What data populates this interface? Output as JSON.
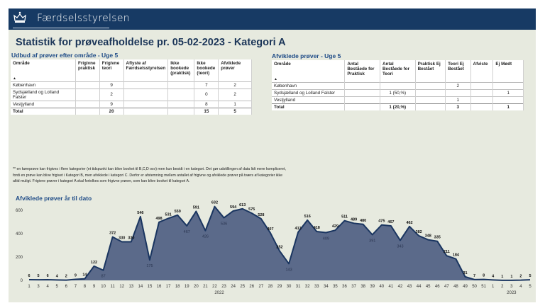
{
  "header": {
    "brand": "Færdselsstyrelsen",
    "logo_icon": "crown-icon",
    "bg_color": "#173a64"
  },
  "title": "Statistik for prøveafholdelse pr. 05-02-2023 - Kategori A",
  "offer_table": {
    "title": "Udbud af prøver efter område - Uge 5",
    "columns": [
      "Område",
      "Frigivne praktisk",
      "Frigivne teori",
      "Aflyste af Færdselsstyrelsen",
      "Ikke bookede (praktisk)",
      "Ikke bookede (teori)",
      "Afviklede prøver"
    ],
    "rows": [
      [
        "København",
        "",
        "9",
        "",
        "",
        "7",
        "2"
      ],
      [
        "Sydsjælland og Lolland Falster",
        "",
        "2",
        "",
        "",
        "0",
        "2"
      ],
      [
        "Vestjylland",
        "",
        "9",
        "",
        "",
        "8",
        "1"
      ]
    ],
    "total": [
      "Total",
      "",
      "20",
      "",
      "",
      "15",
      "5"
    ]
  },
  "completed_table": {
    "title": "Afviklede prøver - Uge 5",
    "columns": [
      "Område",
      "Antal Beståede for Praktisk",
      "Antal Beståede for Teori",
      "Praktisk Ej Bestået",
      "Teori Ej Bestået",
      "Afviste",
      "Ej Mødt"
    ],
    "rows": [
      [
        "København",
        "",
        "",
        "",
        "2",
        "",
        ""
      ],
      [
        "Sydsjælland og Lolland Falster",
        "",
        "1 (50,%)",
        "",
        "",
        "",
        "1"
      ],
      [
        "Vestjylland",
        "",
        "",
        "",
        "1",
        "",
        ""
      ]
    ],
    "total": [
      "Total",
      "",
      "1 (20,%)",
      "",
      "3",
      "",
      "1"
    ]
  },
  "footnote": "** en køreprøve kan frigives i flere kategorier (et tidspunkt kan blive booket til B,C,D osv) men kun besidt i en kategori. Det gør udstillingen af data lidt mere kompliceret, fordi en prøve kan blive frigivet i Kategori B, men afviklede i kategori C. Derfor er afstemning mellem antallet af frigivne og afviklede prøver på tværs af kategorier ikke altid muligt. Frigivne prøver i kategori A skal fortolkes som frigivne prøver, som kan blive booket til kategori A.",
  "chart_data": {
    "type": "area",
    "title": "Afviklede prøver år til dato",
    "x": [
      "1",
      "3",
      "4",
      "5",
      "6",
      "7",
      "8",
      "9",
      "10",
      "11",
      "12",
      "13",
      "14",
      "15",
      "16",
      "17",
      "18",
      "19",
      "20",
      "21",
      "22",
      "23",
      "24",
      "25",
      "26",
      "27",
      "28",
      "29",
      "30",
      "31",
      "32",
      "33",
      "34",
      "35",
      "36",
      "37",
      "38",
      "39",
      "40",
      "41",
      "42",
      "43",
      "44",
      "45",
      "46",
      "47",
      "48",
      "49",
      "50",
      "51",
      "1",
      "2",
      "3",
      "4",
      "5"
    ],
    "values": [
      6,
      5,
      6,
      4,
      2,
      9,
      14,
      122,
      87,
      372,
      330,
      330,
      546,
      175,
      498,
      531,
      559,
      467,
      591,
      426,
      632,
      536,
      594,
      613,
      575,
      528,
      407,
      252,
      143,
      413,
      516,
      418,
      409,
      429,
      511,
      489,
      480,
      391,
      475,
      467,
      343,
      462,
      382,
      348,
      335,
      211,
      184,
      31,
      7,
      8,
      4,
      1,
      1,
      2,
      5
    ],
    "year_labels": [
      {
        "label": "2022",
        "at": "26"
      },
      {
        "label": "2023",
        "at": "3"
      }
    ],
    "yticks": [
      0,
      200,
      400,
      600
    ],
    "ylim": [
      0,
      650
    ],
    "grid": false,
    "fill_color": "#5b6a8a",
    "line_color": "#1a3560"
  }
}
